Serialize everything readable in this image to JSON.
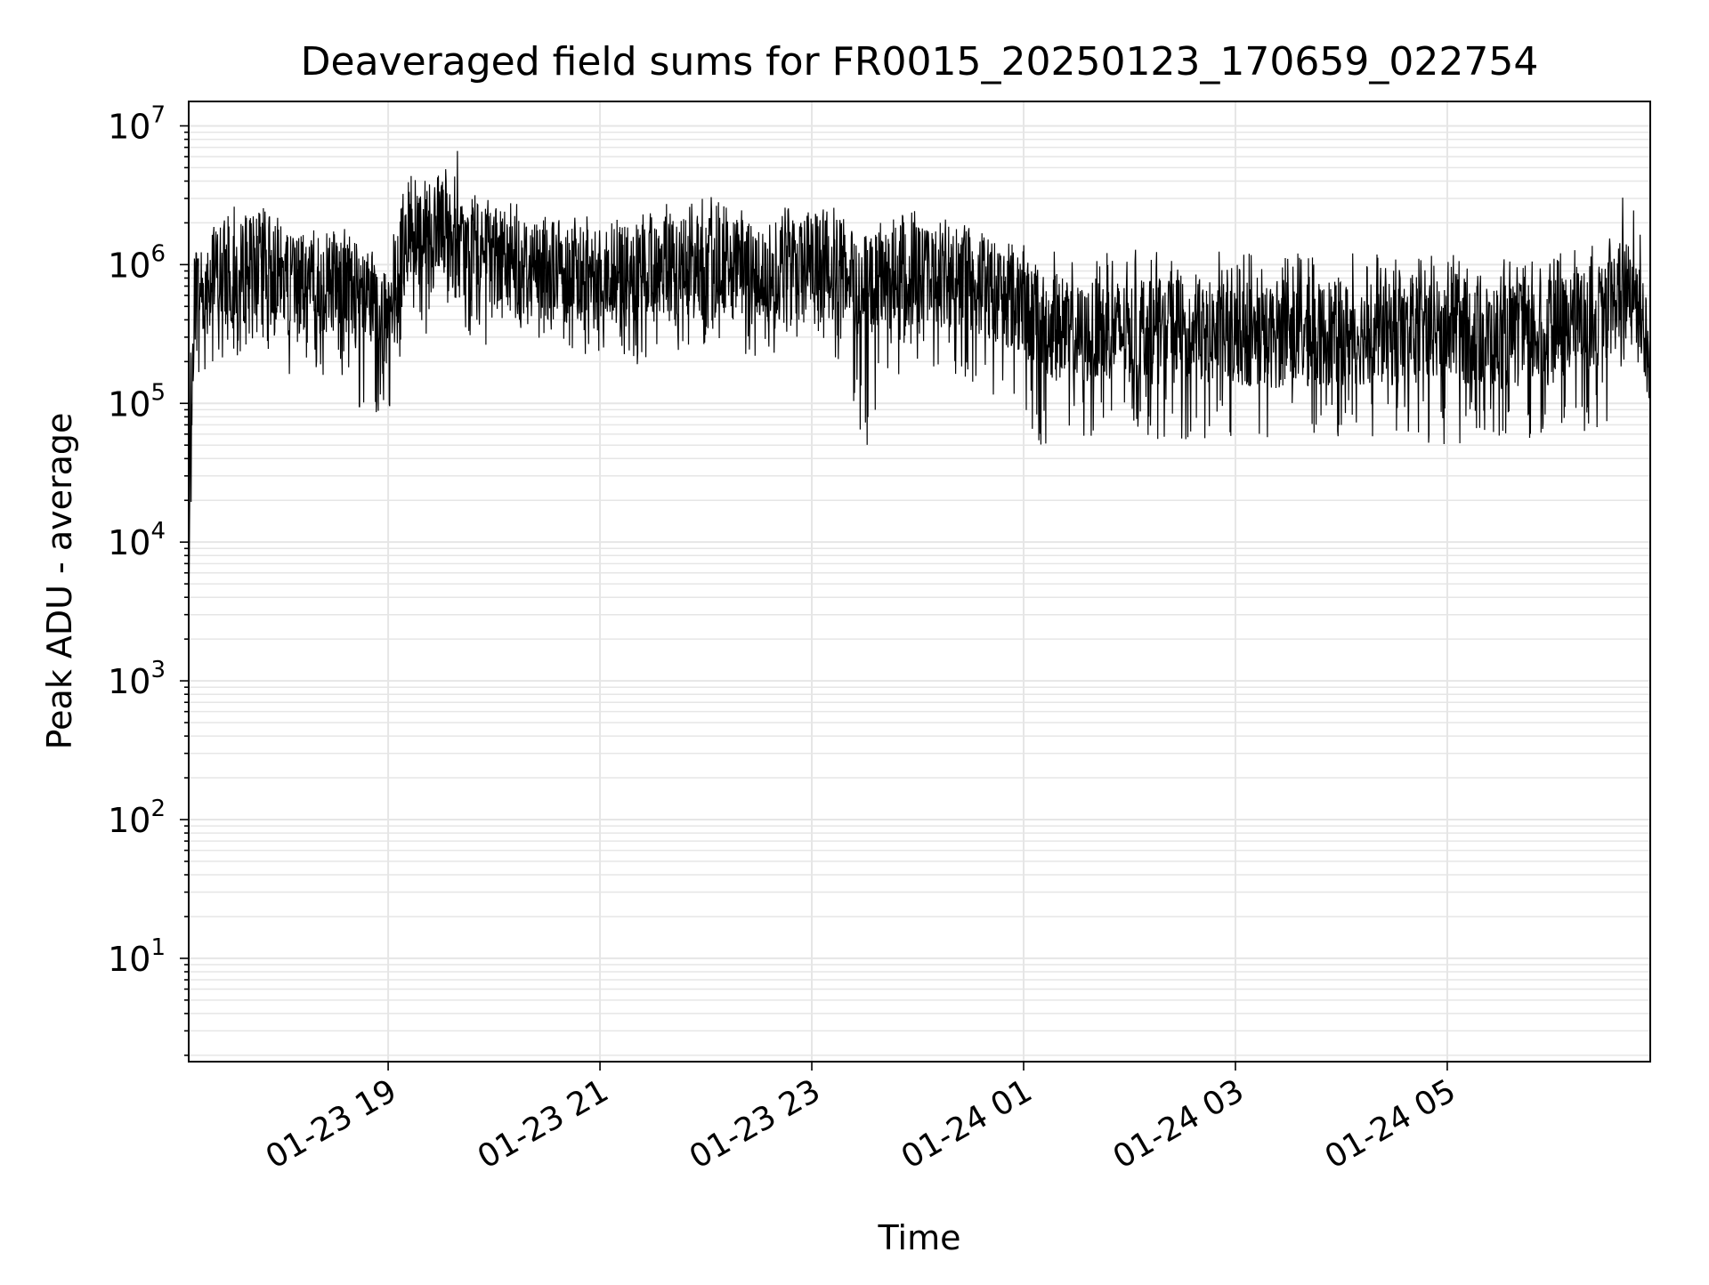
{
  "chart_data": {
    "type": "line",
    "title": "Deaveraged field sums for FR0015_20250123_170659_022754",
    "xlabel": "Time",
    "ylabel": "Peak ADU - average",
    "y_scale": "log",
    "ylim": [
      1.8,
      15000000
    ],
    "xlim": [
      "2025-01-23 17:07",
      "2025-01-24 06:55"
    ],
    "grid": true,
    "grid_minor": true,
    "line_color": "#000000",
    "grid_color": "#e6e6e6",
    "x_ticks": [
      {
        "value": "2025-01-23 19:00",
        "label": "01-23 19"
      },
      {
        "value": "2025-01-23 21:00",
        "label": "01-23 21"
      },
      {
        "value": "2025-01-23 23:00",
        "label": "01-23 23"
      },
      {
        "value": "2025-01-24 01:00",
        "label": "01-24 01"
      },
      {
        "value": "2025-01-24 03:00",
        "label": "01-24 03"
      },
      {
        "value": "2025-01-24 05:00",
        "label": "01-24 05"
      }
    ],
    "y_ticks": [
      {
        "value": 10,
        "base": "10",
        "exp": "1"
      },
      {
        "value": 100,
        "base": "10",
        "exp": "2"
      },
      {
        "value": 1000,
        "base": "10",
        "exp": "3"
      },
      {
        "value": 10000,
        "base": "10",
        "exp": "4"
      },
      {
        "value": 100000,
        "base": "10",
        "exp": "5"
      },
      {
        "value": 1000000,
        "base": "10",
        "exp": "6"
      },
      {
        "value": 10000000,
        "base": "10",
        "exp": "7"
      }
    ],
    "series": [
      {
        "x": [
          "2025-01-23 17:07",
          "2025-01-23 17:10",
          "2025-01-23 17:15",
          "2025-01-23 17:20",
          "2025-01-23 17:25",
          "2025-01-23 17:30",
          "2025-01-23 17:40",
          "2025-01-23 17:50",
          "2025-01-23 18:00",
          "2025-01-23 18:10",
          "2025-01-23 18:20",
          "2025-01-23 18:30",
          "2025-01-23 18:40",
          "2025-01-23 18:50",
          "2025-01-23 18:55",
          "2025-01-23 19:00",
          "2025-01-23 19:10",
          "2025-01-23 19:20",
          "2025-01-23 19:30",
          "2025-01-23 19:40",
          "2025-01-23 19:50",
          "2025-01-23 20:00",
          "2025-01-23 20:15",
          "2025-01-23 20:30",
          "2025-01-23 20:45",
          "2025-01-23 21:00",
          "2025-01-23 21:15",
          "2025-01-23 21:30",
          "2025-01-23 21:45",
          "2025-01-23 22:00",
          "2025-01-23 22:15",
          "2025-01-23 22:30",
          "2025-01-23 22:45",
          "2025-01-23 23:00",
          "2025-01-23 23:15",
          "2025-01-23 23:30",
          "2025-01-23 23:45",
          "2025-01-24 00:00",
          "2025-01-24 00:15",
          "2025-01-24 00:30",
          "2025-01-24 00:45",
          "2025-01-24 01:00",
          "2025-01-24 01:15",
          "2025-01-24 01:30",
          "2025-01-24 01:45",
          "2025-01-24 02:00",
          "2025-01-24 02:30",
          "2025-01-24 03:00",
          "2025-01-24 03:30",
          "2025-01-24 04:00",
          "2025-01-24 04:30",
          "2025-01-24 05:00",
          "2025-01-24 05:30",
          "2025-01-24 06:00",
          "2025-01-24 06:15",
          "2025-01-24 06:30",
          "2025-01-24 06:40",
          "2025-01-24 06:45",
          "2025-01-24 06:50",
          "2025-01-24 06:55"
        ],
        "y": [
          2000,
          600000,
          700000,
          800000,
          900000,
          750000,
          900000,
          1100000,
          800000,
          600000,
          700000,
          800000,
          600000,
          500000,
          400000,
          350000,
          1500000,
          1400000,
          1600000,
          1300000,
          1200000,
          1100000,
          1000000,
          950000,
          900000,
          850000,
          800000,
          850000,
          900000,
          950000,
          900000,
          850000,
          900000,
          1000000,
          900000,
          700000,
          800000,
          850000,
          800000,
          750000,
          650000,
          500000,
          350000,
          300000,
          350000,
          320000,
          330000,
          310000,
          300000,
          320000,
          310000,
          330000,
          300000,
          320000,
          400000,
          450000,
          700000,
          800000,
          500000,
          150000
        ],
        "upper": [
          2000,
          1200000,
          1500000,
          2000000,
          2500000,
          2500000,
          3000000,
          4000000,
          2500000,
          1800000,
          2000000,
          2200000,
          1600000,
          1300000,
          1100000,
          1000000,
          5000000,
          4500000,
          5000000,
          7000000,
          4000000,
          3000000,
          2800000,
          2500000,
          2400000,
          2300000,
          2200000,
          2500000,
          3000000,
          3500000,
          2500000,
          2400000,
          2600000,
          3000000,
          2600000,
          2000000,
          2300000,
          2500000,
          2200000,
          1900000,
          1600000,
          1400000,
          1300000,
          1200000,
          1300000,
          1300000,
          1200000,
          1300000,
          1200000,
          1300000,
          1200000,
          1200000,
          1100000,
          1200000,
          1300000,
          1500000,
          3500000,
          3000000,
          2000000,
          500000
        ],
        "lower": [
          2000,
          120000,
          150000,
          200000,
          200000,
          180000,
          200000,
          250000,
          150000,
          120000,
          130000,
          150000,
          100000,
          80000,
          60000,
          60000,
          300000,
          300000,
          350000,
          300000,
          280000,
          250000,
          250000,
          240000,
          220000,
          200000,
          180000,
          200000,
          220000,
          250000,
          220000,
          200000,
          200000,
          250000,
          200000,
          40000,
          150000,
          180000,
          150000,
          120000,
          90000,
          60000,
          40000,
          55000,
          60000,
          55000,
          55000,
          55000,
          50000,
          55000,
          55000,
          50000,
          55000,
          55000,
          60000,
          70000,
          200000,
          250000,
          150000,
          100000
        ]
      }
    ]
  }
}
